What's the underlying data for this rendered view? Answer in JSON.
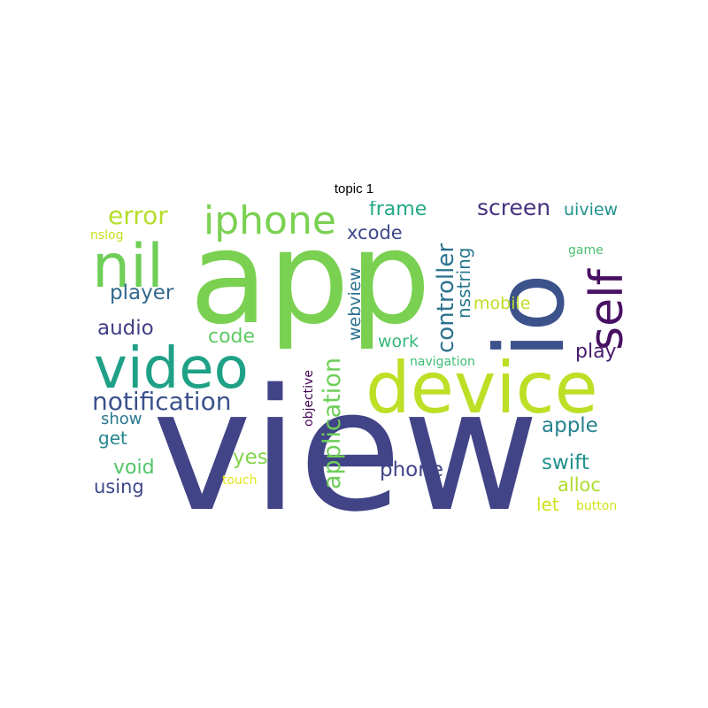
{
  "title": "topic 1",
  "words": [
    {
      "text": "view",
      "color": "#414487",
      "vertical": false
    },
    {
      "text": "app",
      "color": "#7ad151",
      "vertical": false
    },
    {
      "text": "io",
      "color": "#3b528b",
      "vertical": true
    },
    {
      "text": "device",
      "color": "#bddf26",
      "vertical": false
    },
    {
      "text": "video",
      "color": "#1fa187",
      "vertical": false
    },
    {
      "text": "nil",
      "color": "#6ece58",
      "vertical": false
    },
    {
      "text": "iphone",
      "color": "#7ad151",
      "vertical": false
    },
    {
      "text": "self",
      "color": "#471063",
      "vertical": true
    },
    {
      "text": "notification",
      "color": "#3b528b",
      "vertical": false
    },
    {
      "text": "application",
      "color": "#6ece58",
      "vertical": true
    },
    {
      "text": "controller",
      "color": "#2c728e",
      "vertical": true
    },
    {
      "text": "error",
      "color": "#b5de2b",
      "vertical": false
    },
    {
      "text": "screen",
      "color": "#46327e",
      "vertical": false
    },
    {
      "text": "frame",
      "color": "#22a884",
      "vertical": false
    },
    {
      "text": "xcode",
      "color": "#3e4989",
      "vertical": false
    },
    {
      "text": "nsstring",
      "color": "#2a788e",
      "vertical": true
    },
    {
      "text": "uiview",
      "color": "#21918c",
      "vertical": false
    },
    {
      "text": "player",
      "color": "#31688e",
      "vertical": false
    },
    {
      "text": "code",
      "color": "#5ec962",
      "vertical": false
    },
    {
      "text": "audio",
      "color": "#433e85",
      "vertical": false
    },
    {
      "text": "webview",
      "color": "#2c728e",
      "vertical": true
    },
    {
      "text": "mobile",
      "color": "#bddf26",
      "vertical": false
    },
    {
      "text": "work",
      "color": "#35b779",
      "vertical": false
    },
    {
      "text": "play",
      "color": "#481b6d",
      "vertical": false
    },
    {
      "text": "apple",
      "color": "#26828e",
      "vertical": false
    },
    {
      "text": "swift",
      "color": "#21918c",
      "vertical": false
    },
    {
      "text": "alloc",
      "color": "#addc30",
      "vertical": false
    },
    {
      "text": "phone",
      "color": "#414487",
      "vertical": false
    },
    {
      "text": "yes",
      "color": "#84d44b",
      "vertical": false
    },
    {
      "text": "show",
      "color": "#2a788e",
      "vertical": false
    },
    {
      "text": "get",
      "color": "#25858e",
      "vertical": false
    },
    {
      "text": "void",
      "color": "#52c569",
      "vertical": false
    },
    {
      "text": "using",
      "color": "#3e4989",
      "vertical": false
    },
    {
      "text": "let",
      "color": "#d0e11c",
      "vertical": false
    },
    {
      "text": "button",
      "color": "#d2e21b",
      "vertical": false
    },
    {
      "text": "objective",
      "color": "#440154",
      "vertical": true
    },
    {
      "text": "navigation",
      "color": "#3dbc74",
      "vertical": false
    },
    {
      "text": "nslog",
      "color": "#c8e020",
      "vertical": false
    },
    {
      "text": "game",
      "color": "#4ac16d",
      "vertical": false
    },
    {
      "text": "touch",
      "color": "#e5e419",
      "vertical": false
    }
  ]
}
